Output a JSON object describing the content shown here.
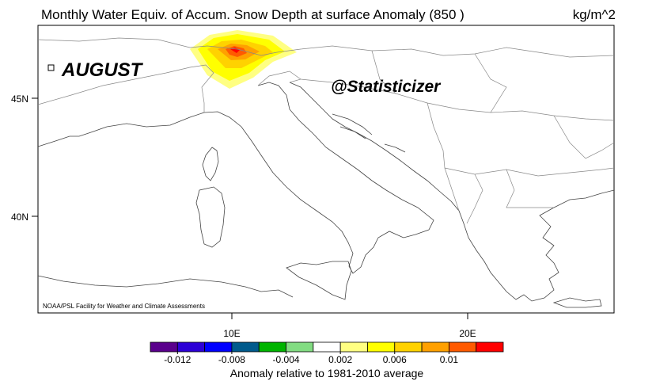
{
  "title": "Monthly Water Equiv. of Accum. Snow Depth at surface Anomaly (850 )",
  "units": "kg/m^2",
  "month_label": "AUGUST",
  "watermark": "@Statisticizer",
  "credit": "NOAA/PSL Facility for Weather and Climate Assessments",
  "lat_labels": [
    "45N",
    "40N"
  ],
  "lon_labels": [
    "10E",
    "20E"
  ],
  "colorbar": {
    "colors": [
      "#5a008c",
      "#2c00d6",
      "#0000ff",
      "#005a8c",
      "#00b400",
      "#82dc82",
      "#ffffff",
      "#ffff82",
      "#ffff00",
      "#ffd200",
      "#ffa000",
      "#ff5a00",
      "#ff0000"
    ],
    "ticks": [
      -0.012,
      -0.008,
      -0.004,
      0.002,
      0.006,
      0.01
    ],
    "title": "Anomaly relative to 1981-2010 average"
  }
}
